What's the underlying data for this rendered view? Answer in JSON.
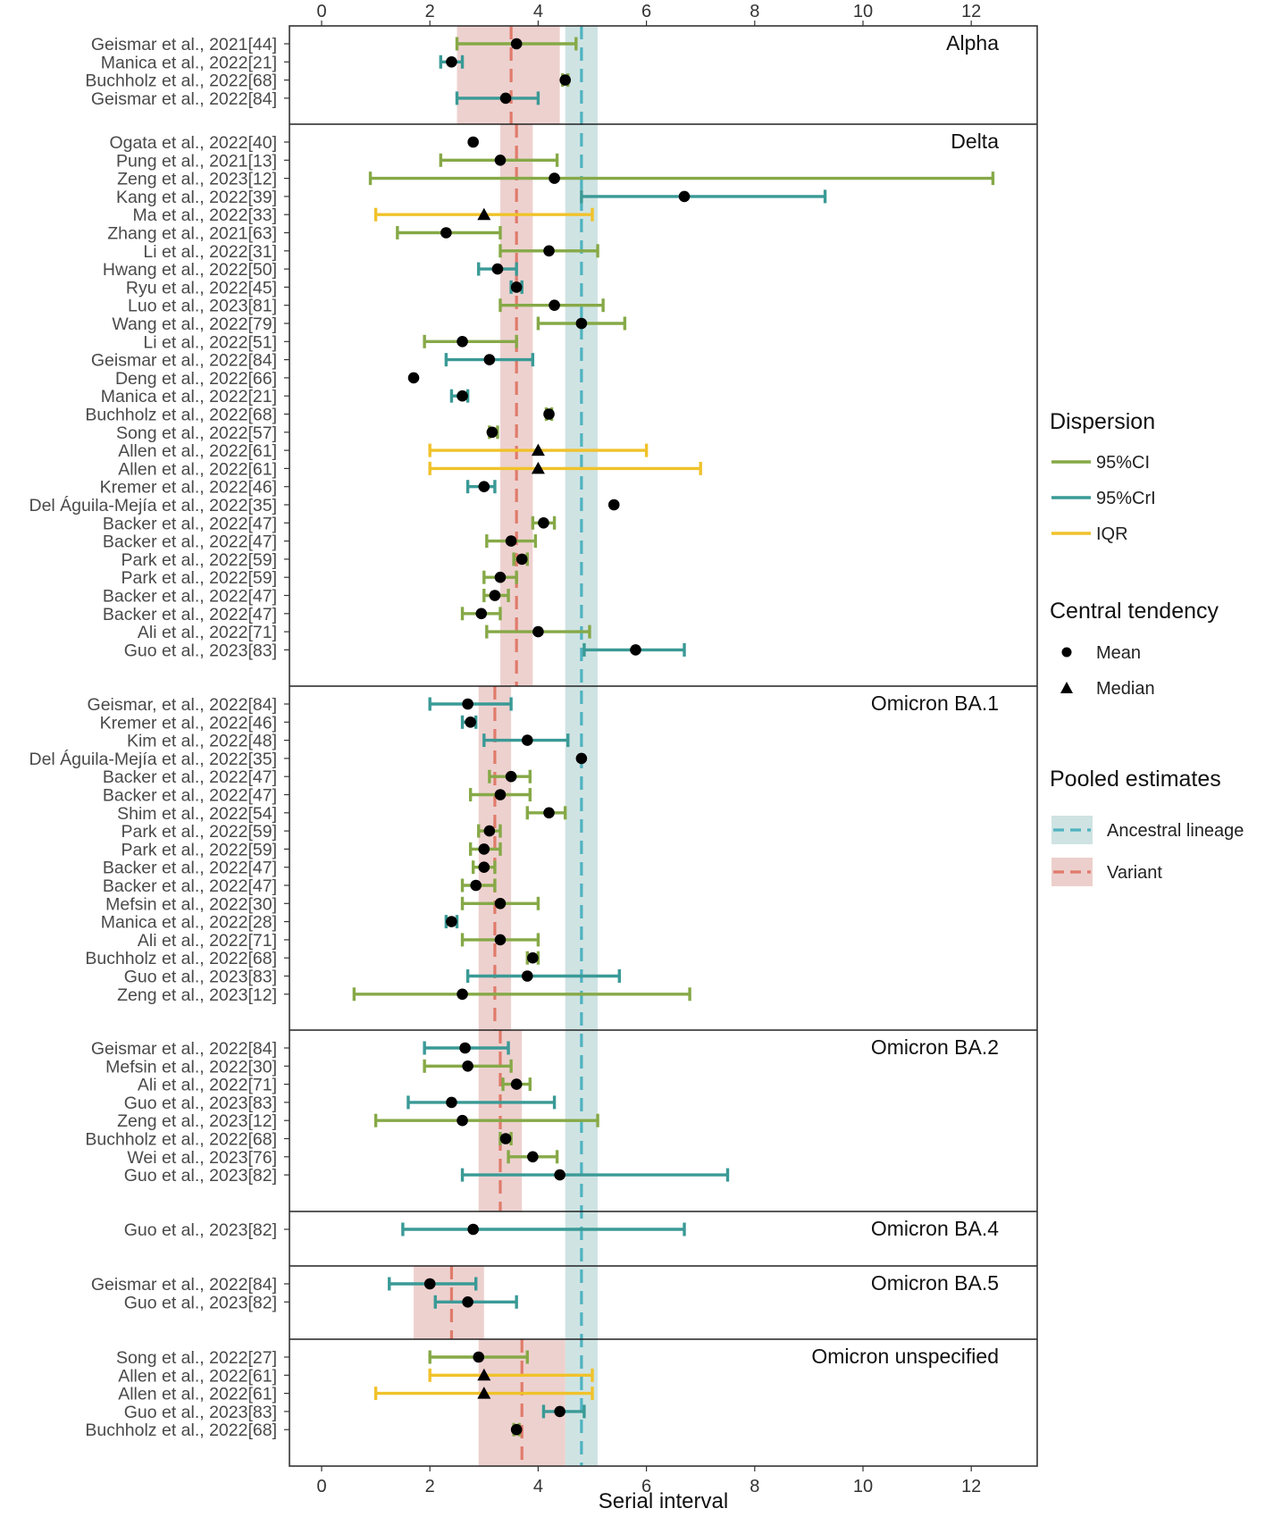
{
  "chart_data": {
    "type": "forest",
    "xlabel": "Serial interval",
    "xlim": [
      -0.6,
      13.2
    ],
    "xticks": [
      0,
      2,
      4,
      6,
      8,
      10,
      12
    ],
    "grid": false,
    "legend_position": "right",
    "legend": {
      "dispersion_title": "Dispersion",
      "dispersion": [
        {
          "key": "CI",
          "label": "95%CI",
          "color": "#86a947"
        },
        {
          "key": "CrI",
          "label": "95%CrI",
          "color": "#3a9a96"
        },
        {
          "key": "IQR",
          "label": "IQR",
          "color": "#f0c22b"
        }
      ],
      "central_title": "Central tendency",
      "central": [
        {
          "key": "mean",
          "label": "Mean"
        },
        {
          "key": "median",
          "label": "Median"
        }
      ],
      "pooled_title": "Pooled estimates",
      "pooled": [
        {
          "key": "ancestral",
          "label": "Ancestral lineage",
          "color": "#4fb3c0",
          "band_color": "#cfe3e3"
        },
        {
          "key": "variant",
          "label": "Variant",
          "color": "#e07b6b",
          "band_color": "#eccfcc"
        }
      ]
    },
    "ancestral_pooled": {
      "estimate": 4.8,
      "ci": [
        4.5,
        5.1
      ]
    },
    "panels": [
      {
        "name": "Alpha",
        "variant_pooled": {
          "estimate": 3.5,
          "ci": [
            2.5,
            4.4
          ]
        },
        "studies": [
          {
            "label": "Geismar et al., 2021[44]",
            "type": "CI",
            "central": "mean",
            "est": 3.6,
            "lo": 2.5,
            "hi": 4.7
          },
          {
            "label": "Manica et al., 2022[21]",
            "type": "CrI",
            "central": "mean",
            "est": 2.4,
            "lo": 2.2,
            "hi": 2.6
          },
          {
            "label": "Buchholz et al., 2022[68]",
            "type": "CI",
            "central": "mean",
            "est": 4.5,
            "lo": 4.45,
            "hi": 4.55
          },
          {
            "label": "Geismar et al., 2022[84]",
            "type": "CrI",
            "central": "mean",
            "est": 3.4,
            "lo": 2.5,
            "hi": 4.0
          }
        ]
      },
      {
        "name": "Delta",
        "variant_pooled": {
          "estimate": 3.6,
          "ci": [
            3.3,
            3.9
          ]
        },
        "studies": [
          {
            "label": "Ogata et al., 2022[40]",
            "type": "none",
            "central": "mean",
            "est": 2.8,
            "lo": null,
            "hi": null
          },
          {
            "label": "Pung et al., 2021[13]",
            "type": "CI",
            "central": "mean",
            "est": 3.3,
            "lo": 2.2,
            "hi": 4.35
          },
          {
            "label": "Zeng et al., 2023[12]",
            "type": "CI",
            "central": "mean",
            "est": 4.3,
            "lo": 0.9,
            "hi": 12.4
          },
          {
            "label": "Kang et al., 2022[39]",
            "type": "CrI",
            "central": "mean",
            "est": 6.7,
            "lo": 4.8,
            "hi": 9.3
          },
          {
            "label": "Ma et al., 2022[33]",
            "type": "IQR",
            "central": "median",
            "est": 3.0,
            "lo": 1.0,
            "hi": 5.0
          },
          {
            "label": "Zhang et al., 2021[63]",
            "type": "CI",
            "central": "mean",
            "est": 2.3,
            "lo": 1.4,
            "hi": 3.3
          },
          {
            "label": "Li et al., 2022[31]",
            "type": "CI",
            "central": "mean",
            "est": 4.2,
            "lo": 3.3,
            "hi": 5.1
          },
          {
            "label": "Hwang et al., 2022[50]",
            "type": "CrI",
            "central": "mean",
            "est": 3.25,
            "lo": 2.9,
            "hi": 3.6
          },
          {
            "label": "Ryu et al., 2022[45]",
            "type": "CrI",
            "central": "mean",
            "est": 3.6,
            "lo": 3.5,
            "hi": 3.7
          },
          {
            "label": "Luo et al., 2023[81]",
            "type": "CI",
            "central": "mean",
            "est": 4.3,
            "lo": 3.3,
            "hi": 5.2
          },
          {
            "label": "Wang et al., 2022[79]",
            "type": "CI",
            "central": "mean",
            "est": 4.8,
            "lo": 4.0,
            "hi": 5.6
          },
          {
            "label": "Li et al., 2022[51]",
            "type": "CI",
            "central": "mean",
            "est": 2.6,
            "lo": 1.9,
            "hi": 3.6
          },
          {
            "label": "Geismar et al., 2022[84]",
            "type": "CrI",
            "central": "mean",
            "est": 3.1,
            "lo": 2.3,
            "hi": 3.9
          },
          {
            "label": "Deng et al., 2022[66]",
            "type": "none",
            "central": "mean",
            "est": 1.7,
            "lo": null,
            "hi": null
          },
          {
            "label": "Manica et al., 2022[21]",
            "type": "CrI",
            "central": "mean",
            "est": 2.6,
            "lo": 2.4,
            "hi": 2.7
          },
          {
            "label": "Buchholz et al., 2022[68]",
            "type": "CI",
            "central": "mean",
            "est": 4.2,
            "lo": 4.15,
            "hi": 4.25
          },
          {
            "label": "Song et al., 2022[57]",
            "type": "CI",
            "central": "mean",
            "est": 3.15,
            "lo": 3.1,
            "hi": 3.25
          },
          {
            "label": "Allen et al., 2022[61]",
            "type": "IQR",
            "central": "median",
            "est": 4.0,
            "lo": 2.0,
            "hi": 6.0
          },
          {
            "label": "Allen et al., 2022[61]",
            "type": "IQR",
            "central": "median",
            "est": 4.0,
            "lo": 2.0,
            "hi": 7.0
          },
          {
            "label": "Kremer et al., 2022[46]",
            "type": "CrI",
            "central": "mean",
            "est": 3.0,
            "lo": 2.7,
            "hi": 3.2
          },
          {
            "label": "Del Águila-Mejía et al., 2022[35]",
            "type": "none",
            "central": "mean",
            "est": 5.4,
            "lo": null,
            "hi": null
          },
          {
            "label": "Backer et al., 2022[47]",
            "type": "CI",
            "central": "mean",
            "est": 4.1,
            "lo": 3.9,
            "hi": 4.3
          },
          {
            "label": "Backer et al., 2022[47]",
            "type": "CI",
            "central": "mean",
            "est": 3.5,
            "lo": 3.05,
            "hi": 3.95
          },
          {
            "label": "Park et al., 2022[59]",
            "type": "CI",
            "central": "mean",
            "est": 3.7,
            "lo": 3.55,
            "hi": 3.8
          },
          {
            "label": "Park et al., 2022[59]",
            "type": "CI",
            "central": "mean",
            "est": 3.3,
            "lo": 3.0,
            "hi": 3.6
          },
          {
            "label": "Backer et al., 2022[47]",
            "type": "CI",
            "central": "mean",
            "est": 3.2,
            "lo": 3.0,
            "hi": 3.45
          },
          {
            "label": "Backer et al., 2022[47]",
            "type": "CI",
            "central": "mean",
            "est": 2.95,
            "lo": 2.6,
            "hi": 3.3
          },
          {
            "label": "Ali et al., 2022[71]",
            "type": "CI",
            "central": "mean",
            "est": 4.0,
            "lo": 3.05,
            "hi": 4.95
          },
          {
            "label": "Guo et al., 2023[83]",
            "type": "CrI",
            "central": "mean",
            "est": 5.8,
            "lo": 4.85,
            "hi": 6.7
          }
        ]
      },
      {
        "name": "Omicron BA.1",
        "variant_pooled": {
          "estimate": 3.2,
          "ci": [
            2.9,
            3.5
          ]
        },
        "studies": [
          {
            "label": "Geismar, et al., 2022[84]",
            "type": "CrI",
            "central": "mean",
            "est": 2.7,
            "lo": 2.0,
            "hi": 3.5
          },
          {
            "label": "Kremer et al., 2022[46]",
            "type": "CrI",
            "central": "mean",
            "est": 2.75,
            "lo": 2.6,
            "hi": 2.85
          },
          {
            "label": "Kim et al., 2022[48]",
            "type": "CrI",
            "central": "mean",
            "est": 3.8,
            "lo": 3.0,
            "hi": 4.55
          },
          {
            "label": "Del Águila-Mejía et al., 2022[35]",
            "type": "none",
            "central": "mean",
            "est": 4.8,
            "lo": null,
            "hi": null
          },
          {
            "label": "Backer et al., 2022[47]",
            "type": "CI",
            "central": "mean",
            "est": 3.5,
            "lo": 3.1,
            "hi": 3.85
          },
          {
            "label": "Backer et al., 2022[47]",
            "type": "CI",
            "central": "mean",
            "est": 3.3,
            "lo": 2.75,
            "hi": 3.85
          },
          {
            "label": "Shim et al., 2022[54]",
            "type": "CI",
            "central": "mean",
            "est": 4.2,
            "lo": 3.8,
            "hi": 4.5
          },
          {
            "label": "Park et al., 2022[59]",
            "type": "CI",
            "central": "mean",
            "est": 3.1,
            "lo": 2.9,
            "hi": 3.3
          },
          {
            "label": "Park et al., 2022[59]",
            "type": "CI",
            "central": "mean",
            "est": 3.0,
            "lo": 2.75,
            "hi": 3.3
          },
          {
            "label": "Backer et al., 2022[47]",
            "type": "CI",
            "central": "mean",
            "est": 3.0,
            "lo": 2.8,
            "hi": 3.2
          },
          {
            "label": "Backer et al., 2022[47]",
            "type": "CI",
            "central": "mean",
            "est": 2.85,
            "lo": 2.6,
            "hi": 3.2
          },
          {
            "label": "Mefsin et al., 2022[30]",
            "type": "CI",
            "central": "mean",
            "est": 3.3,
            "lo": 2.6,
            "hi": 4.0
          },
          {
            "label": "Manica et al., 2022[28]",
            "type": "CrI",
            "central": "mean",
            "est": 2.4,
            "lo": 2.3,
            "hi": 2.5
          },
          {
            "label": "Ali et al., 2022[71]",
            "type": "CI",
            "central": "mean",
            "est": 3.3,
            "lo": 2.6,
            "hi": 4.0
          },
          {
            "label": "Buchholz et al., 2022[68]",
            "type": "CI",
            "central": "mean",
            "est": 3.9,
            "lo": 3.8,
            "hi": 4.0
          },
          {
            "label": "Guo et al., 2023[83]",
            "type": "CrI",
            "central": "mean",
            "est": 3.8,
            "lo": 2.7,
            "hi": 5.5
          },
          {
            "label": "Zeng et al., 2023[12]",
            "type": "CI",
            "central": "mean",
            "est": 2.6,
            "lo": 0.6,
            "hi": 6.8
          }
        ]
      },
      {
        "name": "Omicron BA.2",
        "variant_pooled": {
          "estimate": 3.3,
          "ci": [
            2.9,
            3.7
          ]
        },
        "studies": [
          {
            "label": "Geismar et al., 2022[84]",
            "type": "CrI",
            "central": "mean",
            "est": 2.65,
            "lo": 1.9,
            "hi": 3.45
          },
          {
            "label": "Mefsin et al., 2022[30]",
            "type": "CI",
            "central": "mean",
            "est": 2.7,
            "lo": 1.9,
            "hi": 3.5
          },
          {
            "label": "Ali et al., 2022[71]",
            "type": "CI",
            "central": "mean",
            "est": 3.6,
            "lo": 3.35,
            "hi": 3.85
          },
          {
            "label": "Guo et al., 2023[83]",
            "type": "CrI",
            "central": "mean",
            "est": 2.4,
            "lo": 1.6,
            "hi": 4.3
          },
          {
            "label": "Zeng et al., 2023[12]",
            "type": "CI",
            "central": "mean",
            "est": 2.6,
            "lo": 1.0,
            "hi": 5.1
          },
          {
            "label": "Buchholz et al., 2022[68]",
            "type": "CI",
            "central": "mean",
            "est": 3.4,
            "lo": 3.3,
            "hi": 3.5
          },
          {
            "label": "Wei et al., 2023[76]",
            "type": "CI",
            "central": "mean",
            "est": 3.9,
            "lo": 3.45,
            "hi": 4.35
          },
          {
            "label": "Guo et al., 2023[82]",
            "type": "CrI",
            "central": "mean",
            "est": 4.4,
            "lo": 2.6,
            "hi": 7.5
          }
        ]
      },
      {
        "name": "Omicron BA.4",
        "variant_pooled": null,
        "studies": [
          {
            "label": "Guo et al., 2023[82]",
            "type": "CrI",
            "central": "mean",
            "est": 2.8,
            "lo": 1.5,
            "hi": 6.7
          }
        ]
      },
      {
        "name": "Omicron BA.5",
        "variant_pooled": {
          "estimate": 2.4,
          "ci": [
            1.7,
            3.0
          ]
        },
        "studies": [
          {
            "label": "Geismar et al., 2022[84]",
            "type": "CrI",
            "central": "mean",
            "est": 2.0,
            "lo": 1.25,
            "hi": 2.85
          },
          {
            "label": "Guo et al., 2023[82]",
            "type": "CrI",
            "central": "mean",
            "est": 2.7,
            "lo": 2.1,
            "hi": 3.6
          }
        ]
      },
      {
        "name": "Omicron unspecified",
        "variant_pooled": {
          "estimate": 3.7,
          "ci": [
            2.9,
            4.5
          ]
        },
        "studies": [
          {
            "label": "Song et al., 2022[27]",
            "type": "CI",
            "central": "mean",
            "est": 2.9,
            "lo": 2.0,
            "hi": 3.8
          },
          {
            "label": "Allen et al., 2022[61]",
            "type": "IQR",
            "central": "median",
            "est": 3.0,
            "lo": 2.0,
            "hi": 5.0
          },
          {
            "label": "Allen et al., 2022[61]",
            "type": "IQR",
            "central": "median",
            "est": 3.0,
            "lo": 1.0,
            "hi": 5.0
          },
          {
            "label": "Guo et al., 2023[83]",
            "type": "CrI",
            "central": "mean",
            "est": 4.4,
            "lo": 4.1,
            "hi": 4.85
          },
          {
            "label": "Buchholz et al., 2022[68]",
            "type": "CI",
            "central": "mean",
            "est": 3.6,
            "lo": 3.55,
            "hi": 3.65
          }
        ]
      }
    ]
  }
}
